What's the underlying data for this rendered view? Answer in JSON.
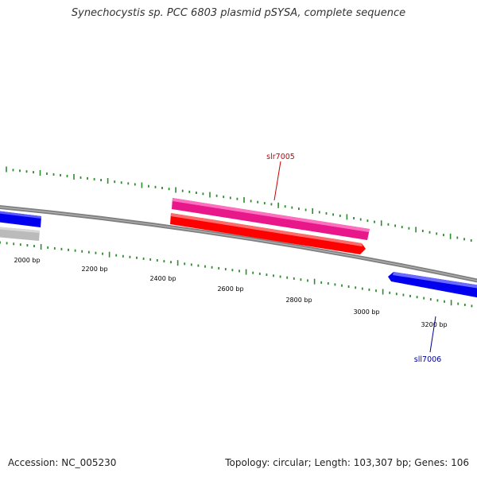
{
  "title": "Synechocystis sp. PCC 6803 plasmid pSYSA, complete sequence",
  "footer": {
    "accession_label": "Accession:",
    "accession": "NC_005230",
    "topology_label": "Topology:",
    "topology": "circular",
    "length_label": "Length:",
    "length": "103,307 bp",
    "genes_label": "Genes:",
    "genes": "106"
  },
  "scale_labels": [
    "2000 bp",
    "2200 bp",
    "2400 bp",
    "2600 bp",
    "2800 bp",
    "3000 bp",
    "3200 bp"
  ],
  "genes": [
    {
      "id": "slr7005",
      "label": "slr7005",
      "strand": "forward",
      "color": "#e8178a",
      "label_color": "#cc0000"
    },
    {
      "id": "sll7006",
      "label": "sll7006",
      "strand": "reverse",
      "color": "#0000ee",
      "label_color": "#000099"
    }
  ],
  "colors": {
    "backbone": "#808080",
    "tick_marks": "#2e8b2e",
    "cds_forward": "#ff0000",
    "gene_forward": "#e8178a",
    "gene_reverse": "#0000ee",
    "cds_unknown": "#bbbbbb"
  }
}
